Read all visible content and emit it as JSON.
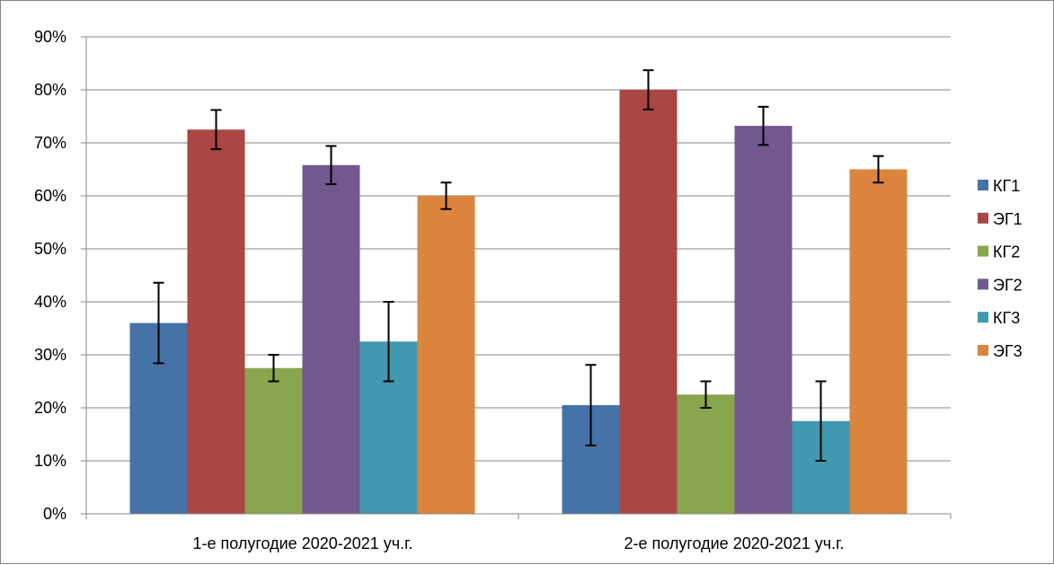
{
  "chart_data": {
    "type": "bar",
    "categories": [
      "1-е полугодие 2020-2021 уч.г.",
      "2-е полугодие 2020-2021 уч.г."
    ],
    "series": [
      {
        "name": "КГ1",
        "color": "#4572A7",
        "values": [
          36,
          20.5
        ],
        "error": [
          7.6,
          7.6
        ]
      },
      {
        "name": "ЭГ1",
        "color": "#AA4643",
        "values": [
          72.5,
          80
        ],
        "error": [
          3.7,
          3.7
        ]
      },
      {
        "name": "КГ2",
        "color": "#89A54E",
        "values": [
          27.5,
          22.5
        ],
        "error": [
          2.5,
          2.5
        ]
      },
      {
        "name": "ЭГ2",
        "color": "#71588F",
        "values": [
          65.8,
          73.2
        ],
        "error": [
          3.6,
          3.6
        ]
      },
      {
        "name": "КГ3",
        "color": "#4198AF",
        "values": [
          32.5,
          17.5
        ],
        "error": [
          7.5,
          7.5
        ]
      },
      {
        "name": "ЭГ3",
        "color": "#DB843D",
        "values": [
          60,
          65
        ],
        "error": [
          2.5,
          2.5
        ]
      }
    ],
    "y_ticks": [
      "0%",
      "10%",
      "20%",
      "30%",
      "40%",
      "50%",
      "60%",
      "70%",
      "80%",
      "90%"
    ],
    "ylim": [
      0,
      90
    ],
    "grid": true,
    "legend_position": "right"
  }
}
